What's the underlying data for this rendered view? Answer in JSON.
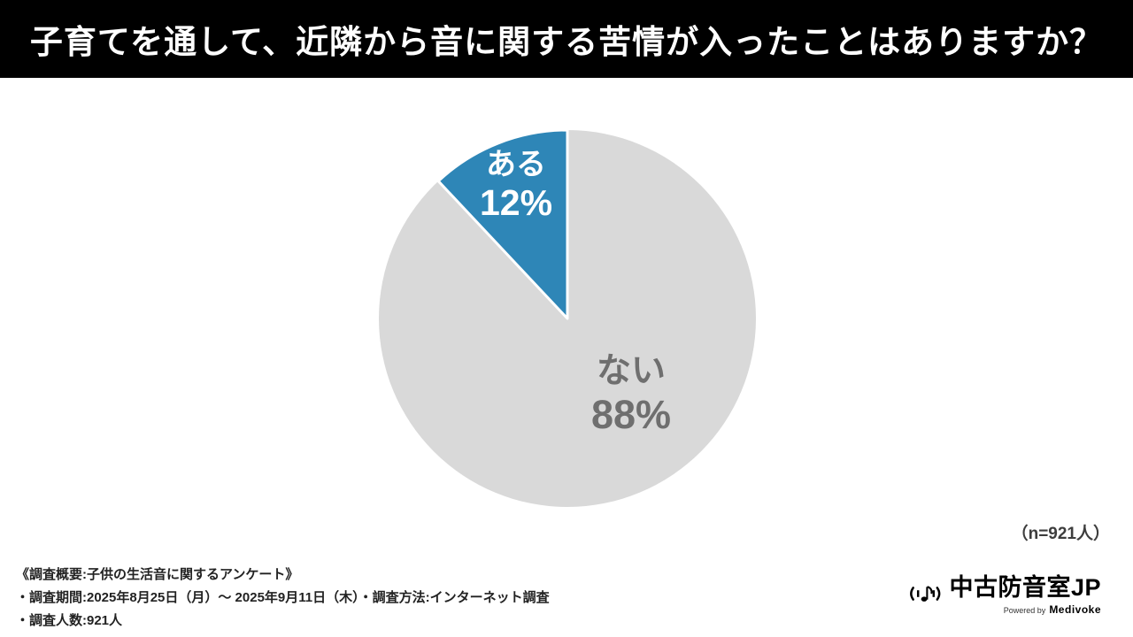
{
  "header": {
    "title": "子育てを通して、近隣から音に関する苦情が入ったことはありますか？"
  },
  "chart_data": {
    "type": "pie",
    "title": "子育てを通して、近隣から音に関する苦情が入ったことはありますか？",
    "categories": [
      "ある",
      "ない"
    ],
    "values": [
      12,
      88
    ],
    "value_labels": [
      "12%",
      "88%"
    ],
    "unit": "%",
    "colors": [
      "#2e86b7",
      "#d9d9d9"
    ],
    "label_colors": [
      "#ffffff",
      "#6f6f6f"
    ],
    "start_angle": "top",
    "direction": "counterclockwise",
    "legend_position": "inside",
    "sample_note": "（n=921人）"
  },
  "footer": {
    "sample": "（n=921人）",
    "note_line1": "《調査概要:子供の生活音に関するアンケート》",
    "note_line2": "・調査期間:2025年8月25日（月）～ 2025年9月11日（木）・調査方法:インターネット調査",
    "note_line3": "・調査人数:921人",
    "logo_text": "中古防音室JP",
    "powered_by": "Powered by",
    "powered_brand": "Medivoke"
  }
}
